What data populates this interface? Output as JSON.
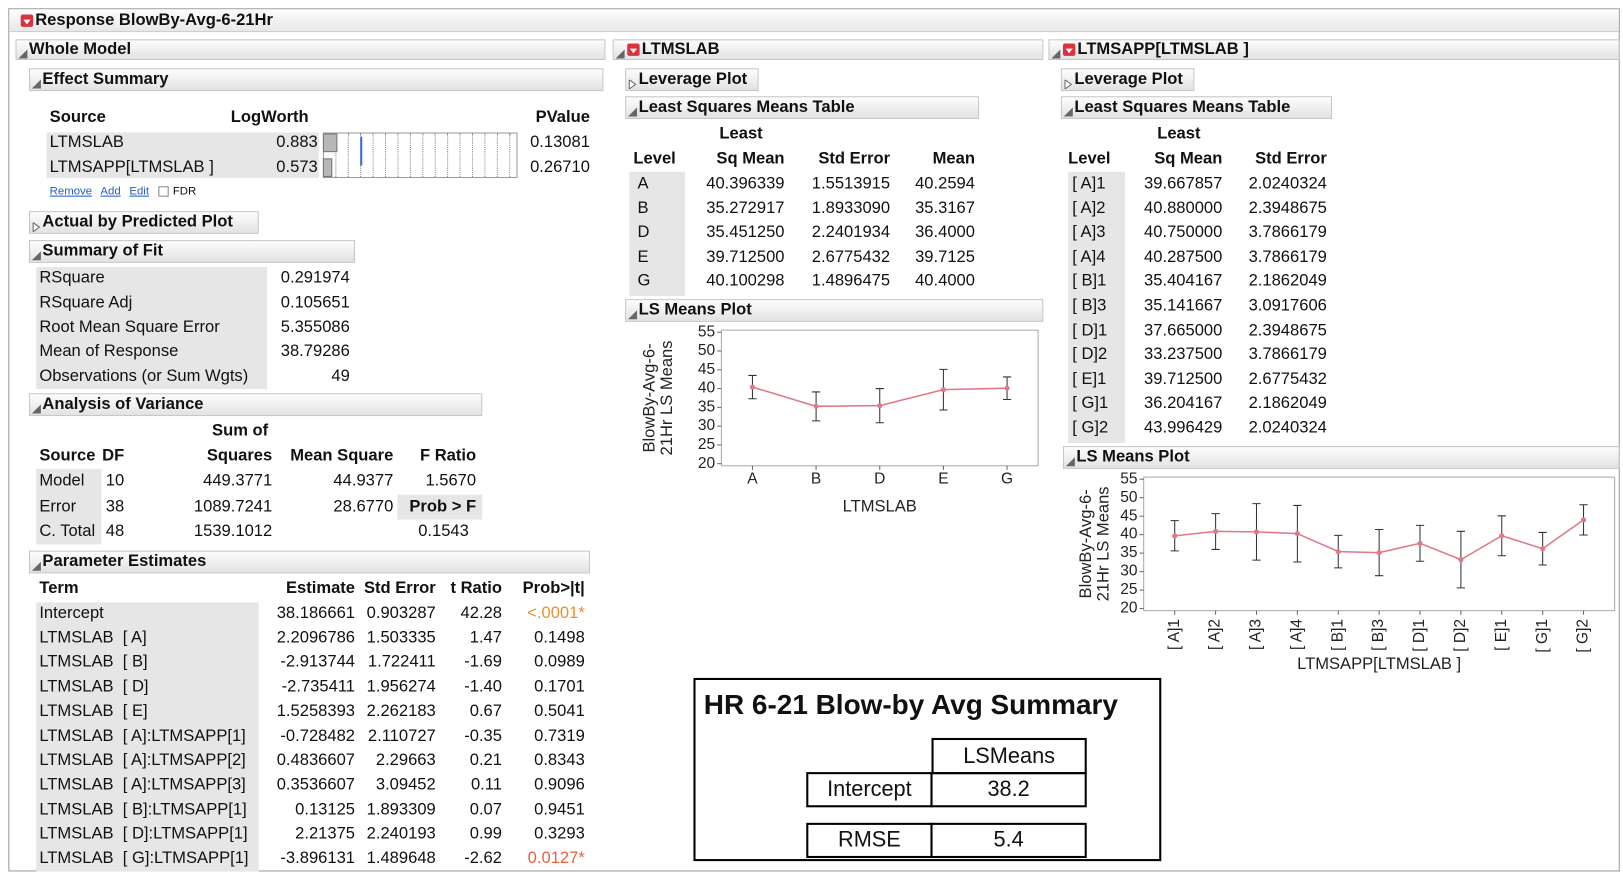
{
  "title": "Response BlowBy-Avg-6-21Hr",
  "whole_model": {
    "title": "Whole Model",
    "effect_summary": {
      "title": "Effect Summary",
      "columns": [
        "Source",
        "LogWorth",
        "PValue"
      ],
      "rows": [
        {
          "source": "LTMSLAB",
          "logworth": 0.883,
          "pvalue": "0.13081"
        },
        {
          "source": "LTMSAPP[LTMSLAB ]",
          "logworth": 0.573,
          "pvalue": "0.26710"
        }
      ],
      "buttons": [
        "Remove",
        "Add",
        "Edit"
      ],
      "checkbox": "FDR"
    },
    "actual_by_predicted": {
      "title": "Actual by Predicted Plot"
    },
    "summary_of_fit": {
      "title": "Summary of Fit",
      "rows": [
        [
          "RSquare",
          "0.291974"
        ],
        [
          "RSquare Adj",
          "0.105651"
        ],
        [
          "Root Mean Square Error",
          "5.355086"
        ],
        [
          "Mean of Response",
          "38.79286"
        ],
        [
          "Observations (or Sum Wgts)",
          "49"
        ]
      ]
    },
    "anova": {
      "title": "Analysis of Variance",
      "header_top": "Sum of",
      "columns": [
        "Source",
        "DF",
        "Squares",
        "Mean Square",
        "F Ratio"
      ],
      "rows": [
        {
          "source": "Model",
          "df": "10",
          "ss": "449.3771",
          "ms": "44.9377",
          "f": "1.5670"
        },
        {
          "source": "Error",
          "df": "38",
          "ss": "1089.7241",
          "ms": "28.6770"
        },
        {
          "source": "C. Total",
          "df": "48",
          "ss": "1539.1012"
        }
      ],
      "prob_header": "Prob > F",
      "prob": "0.1543"
    },
    "parameter_estimates": {
      "title": "Parameter Estimates",
      "columns": [
        "Term",
        "Estimate",
        "Std Error",
        "t Ratio",
        "Prob>|t|"
      ],
      "rows": [
        [
          "Intercept",
          "38.186661",
          "0.903287",
          "42.28",
          "<.0001*"
        ],
        [
          "LTMSLAB  [ A]",
          "2.2096786",
          "1.503335",
          "1.47",
          "0.1498"
        ],
        [
          "LTMSLAB  [ B]",
          "-2.913744",
          "1.722411",
          "-1.69",
          "0.0989"
        ],
        [
          "LTMSLAB  [ D]",
          "-2.735411",
          "1.956274",
          "-1.40",
          "0.1701"
        ],
        [
          "LTMSLAB  [ E]",
          "1.5258393",
          "2.262183",
          "0.67",
          "0.5041"
        ],
        [
          "LTMSLAB  [ A]:LTMSAPP[1]",
          "-0.728482",
          "2.110727",
          "-0.35",
          "0.7319"
        ],
        [
          "LTMSLAB  [ A]:LTMSAPP[2]",
          "0.4836607",
          "2.29663",
          "0.21",
          "0.8343"
        ],
        [
          "LTMSLAB  [ A]:LTMSAPP[3]",
          "0.3536607",
          "3.09452",
          "0.11",
          "0.9096"
        ],
        [
          "LTMSLAB  [ B]:LTMSAPP[1]",
          "0.13125",
          "1.893309",
          "0.07",
          "0.9451"
        ],
        [
          "LTMSLAB  [ D]:LTMSAPP[1]",
          "2.21375",
          "2.240193",
          "0.99",
          "0.3293"
        ],
        [
          "LTMSLAB  [ G]:LTMSAPP[1]",
          "-3.896131",
          "1.489648",
          "-2.62",
          "0.0127*"
        ]
      ]
    }
  },
  "ltmslab": {
    "title": "LTMSLAB",
    "leverage": "Leverage Plot",
    "lsm_table": {
      "title": "Least Squares Means Table",
      "header_top": "Least",
      "columns": [
        "Level",
        "Sq Mean",
        "Std Error",
        "Mean"
      ],
      "rows": [
        [
          "A",
          "40.396339",
          "1.5513915",
          "40.2594"
        ],
        [
          "B",
          "35.272917",
          "1.8933090",
          "35.3167"
        ],
        [
          "D",
          "35.451250",
          "2.2401934",
          "36.4000"
        ],
        [
          "E",
          "39.712500",
          "2.6775432",
          "39.7125"
        ],
        [
          "G",
          "40.100298",
          "1.4896475",
          "40.4000"
        ]
      ]
    },
    "lsm_plot": {
      "title": "LS Means Plot",
      "chart_data": {
        "type": "line",
        "categories": [
          "A",
          "B",
          "D",
          "E",
          "G"
        ],
        "values": [
          40.396339,
          35.272917,
          35.45125,
          39.7125,
          40.100298
        ],
        "lower": [
          37.3,
          31.4,
          30.9,
          34.3,
          37.1
        ],
        "upper": [
          43.5,
          39.1,
          40.0,
          45.1,
          43.1
        ],
        "color": "#e07888",
        "ylim": [
          20,
          55
        ],
        "yticks": [
          20,
          25,
          30,
          35,
          40,
          45,
          50,
          55
        ],
        "ylabel": [
          "BlowBy-Avg-6-",
          "21Hr LS Means"
        ],
        "xlabel": "LTMSLAB"
      }
    }
  },
  "ltmsapp": {
    "title": "LTMSAPP[LTMSLAB ]",
    "leverage": "Leverage Plot",
    "lsm_table": {
      "title": "Least Squares Means Table",
      "header_top": "Least",
      "columns": [
        "Level",
        "Sq Mean",
        "Std Error"
      ],
      "rows": [
        [
          "[ A]1",
          "39.667857",
          "2.0240324"
        ],
        [
          "[ A]2",
          "40.880000",
          "2.3948675"
        ],
        [
          "[ A]3",
          "40.750000",
          "3.7866179"
        ],
        [
          "[ A]4",
          "40.287500",
          "3.7866179"
        ],
        [
          "[ B]1",
          "35.404167",
          "2.1862049"
        ],
        [
          "[ B]3",
          "35.141667",
          "3.0917606"
        ],
        [
          "[ D]1",
          "37.665000",
          "2.3948675"
        ],
        [
          "[ D]2",
          "33.237500",
          "3.7866179"
        ],
        [
          "[ E]1",
          "39.712500",
          "2.6775432"
        ],
        [
          "[ G]1",
          "36.204167",
          "2.1862049"
        ],
        [
          "[ G]2",
          "43.996429",
          "2.0240324"
        ]
      ]
    },
    "lsm_plot": {
      "title": "LS Means Plot",
      "chart_data": {
        "type": "line",
        "categories": [
          "[ A]1",
          "[ A]2",
          "[ A]3",
          "[ A]4",
          "[ B]1",
          "[ B]3",
          "[ D]1",
          "[ D]2",
          "[ E]1",
          "[ G]1",
          "[ G]2"
        ],
        "values": [
          39.667857,
          40.88,
          40.75,
          40.2875,
          35.404167,
          35.141667,
          37.665,
          33.2375,
          39.7125,
          36.204167,
          43.996429
        ],
        "lower": [
          35.6,
          36.0,
          33.1,
          32.6,
          31.0,
          28.9,
          32.8,
          25.6,
          34.3,
          31.8,
          39.9
        ],
        "upper": [
          43.8,
          45.7,
          48.4,
          47.9,
          39.8,
          41.4,
          42.5,
          40.9,
          45.1,
          40.6,
          48.1
        ],
        "color": "#e07888",
        "ylim": [
          20,
          55
        ],
        "yticks": [
          20,
          25,
          30,
          35,
          40,
          45,
          50,
          55
        ],
        "ylabel": [
          "BlowBy-Avg-6-",
          "21Hr LS Means"
        ],
        "xlabel": "LTMSAPP[LTMSLAB ]"
      }
    }
  },
  "summary_box": {
    "title": "HR 6-21 Blow-by Avg Summary",
    "column": "LSMeans",
    "rows": [
      [
        "Intercept",
        "38.2"
      ],
      [
        "RMSE",
        "5.4"
      ]
    ]
  }
}
